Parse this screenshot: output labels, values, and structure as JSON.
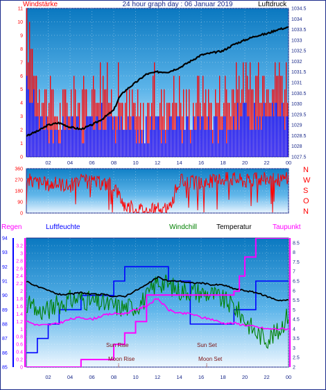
{
  "header": {
    "left_label": "Windstärke",
    "title": "24 hour graph day : 06 Januar 2019",
    "right_label": "Luftdruck"
  },
  "bottom_header": {
    "regen": "Regen",
    "luftfeuchte": "Luftfeuchte",
    "windchill": "Windchill",
    "temperatur": "Temperatur",
    "taupunkt": "Taupunkt"
  },
  "direction_letters": [
    "N",
    "W",
    "S",
    "O",
    "N"
  ],
  "annotations": {
    "sun_rise": "Sun Rise",
    "sun_set": "Sun Set",
    "moon_rise": "Moon Rise",
    "moon_set": "Moon Set"
  },
  "colors": {
    "wind_gust": "#ff0000",
    "wind_avg": "#0000ff",
    "pressure": "#000000",
    "direction": "#ff0000",
    "humidity": "#0000ff",
    "windchill": "#008000",
    "temperature": "#000000",
    "dewpoint": "#ff00ff",
    "rain": "#ff00ff",
    "frame_dark": "#1a2a8a",
    "plot_bg_top": "#0a7ec4",
    "plot_bg_bottom": "#ffffff"
  },
  "chart_data": [
    {
      "type": "area",
      "title": "24 hour graph day : 06 Januar 2019",
      "x_tick_labels": [
        "02",
        "04",
        "06",
        "08",
        "10",
        "12",
        "14",
        "16",
        "18",
        "20",
        "22",
        "00"
      ],
      "left_axis": {
        "label": "Windstärke",
        "ticks": [
          "0",
          "1",
          "2",
          "3",
          "4",
          "5",
          "6",
          "7",
          "8",
          "9",
          "10",
          "11"
        ],
        "ylim": [
          0,
          11
        ]
      },
      "right_axis": {
        "label": "Luftdruck",
        "ticks": [
          "1027.5",
          "1028",
          "1028.5",
          "1029",
          "1029.5",
          "1030",
          "1030.5",
          "1031",
          "1031.5",
          "1032",
          "1032.5",
          "1033",
          "1033.5",
          "1034",
          "1034.5"
        ],
        "ylim": [
          1027.5,
          1034.5
        ]
      },
      "series": [
        {
          "name": "Windstärke",
          "axis": "left",
          "x": [
            0,
            0.5,
            1,
            1.5,
            2,
            2.5,
            3,
            3.5,
            4,
            4.5,
            5,
            5.5,
            6,
            6.5,
            7,
            7.5,
            8,
            8.5,
            9,
            9.5,
            10,
            10.5,
            11,
            11.5,
            12,
            12.5,
            13,
            13.5,
            14,
            14.5,
            15,
            15.5,
            16,
            16.5,
            17,
            17.5,
            18,
            18.5,
            19,
            19.5,
            20,
            20.5,
            21,
            21.5,
            22,
            22.5,
            23,
            23.5,
            24
          ],
          "values": [
            9,
            7,
            5,
            4,
            4,
            3,
            3,
            3,
            4,
            4,
            3,
            4,
            4,
            5,
            5,
            4,
            4,
            4,
            3,
            3,
            3,
            2,
            3,
            4,
            4,
            3,
            4,
            4,
            4,
            3,
            3,
            4,
            4,
            4,
            3,
            4,
            4,
            4,
            4,
            5,
            5,
            4,
            5,
            5,
            6,
            5,
            6,
            5,
            5
          ]
        },
        {
          "name": "Luftdruck",
          "axis": "right",
          "x": [
            0,
            1,
            2,
            3,
            4,
            5,
            6,
            7,
            8,
            8.5,
            9,
            10,
            11,
            12,
            13,
            14,
            15,
            16,
            17,
            18,
            19,
            20,
            21,
            22,
            23,
            24
          ],
          "values": [
            1028.5,
            1028.7,
            1029.0,
            1029.1,
            1028.9,
            1028.8,
            1029.0,
            1029.3,
            1029.7,
            1030.3,
            1030.6,
            1031.0,
            1031.4,
            1031.5,
            1031.5,
            1031.7,
            1032.0,
            1032.3,
            1032.4,
            1032.5,
            1032.8,
            1033.0,
            1033.2,
            1033.3,
            1033.5,
            1033.6
          ]
        }
      ]
    },
    {
      "type": "line",
      "left_axis": {
        "ticks": [
          "0",
          "90",
          "180",
          "270",
          "360"
        ],
        "ylim": [
          0,
          360
        ]
      },
      "right_axis_labels": [
        "N",
        "W",
        "S",
        "O",
        "N"
      ],
      "series": [
        {
          "name": "Windrichtung",
          "x": [
            0,
            1,
            2,
            3,
            4,
            5,
            6,
            7,
            8,
            9,
            10,
            11,
            12,
            13,
            14,
            15,
            16,
            17,
            18,
            19,
            20,
            21,
            22,
            23,
            24
          ],
          "values": [
            270,
            250,
            230,
            240,
            220,
            260,
            250,
            240,
            230,
            60,
            40,
            20,
            30,
            20,
            260,
            250,
            240,
            260,
            280,
            280,
            260,
            270,
            280,
            270,
            280
          ]
        }
      ]
    },
    {
      "type": "line",
      "x_tick_labels": [
        "02",
        "04",
        "06",
        "08",
        "10",
        "12",
        "14",
        "16",
        "18",
        "20",
        "22",
        "00"
      ],
      "left_axis": {
        "label": "Luftfeuchte",
        "ticks": [
          "85",
          "86",
          "87",
          "88",
          "89",
          "90",
          "91",
          "92",
          "93",
          "94"
        ],
        "ylim": [
          85,
          94
        ]
      },
      "rain_axis": {
        "label": "Regen",
        "ticks": [
          "0",
          "0.2",
          "0.4",
          "0.6",
          "0.8",
          "1",
          "1.2",
          "1.4",
          "1.6",
          "1.8",
          "2",
          "2.2",
          "2.4",
          "2.6",
          "2.8",
          "3",
          "3.2"
        ],
        "ylim": [
          0,
          3.4
        ]
      },
      "right_axis": {
        "label": "Temperatur",
        "ticks": [
          "2",
          "2.5",
          "3",
          "3.5",
          "4",
          "4.5",
          "5",
          "5.5",
          "6",
          "6.5",
          "7",
          "7.5",
          "8",
          "8.5"
        ],
        "ylim": [
          2,
          8.75
        ]
      },
      "series": [
        {
          "name": "Luftfeuchte",
          "axis": "left",
          "x": [
            0,
            1,
            2,
            3,
            4,
            5,
            6,
            7,
            8,
            9,
            10,
            11,
            12,
            13,
            14,
            15,
            16,
            17,
            18,
            19,
            20,
            21,
            22,
            23,
            24
          ],
          "values": [
            86,
            87,
            88,
            89,
            89,
            90,
            90,
            90,
            91,
            92,
            92,
            92,
            92,
            91,
            91,
            88,
            88,
            88,
            88,
            89,
            89,
            91,
            91,
            91,
            91
          ]
        },
        {
          "name": "Temperatur",
          "axis": "right",
          "x": [
            0,
            1,
            2,
            3,
            4,
            5,
            6,
            7,
            8,
            9,
            10,
            11,
            12,
            13,
            14,
            15,
            16,
            17,
            18,
            19,
            20,
            21,
            22,
            23,
            24
          ],
          "values": [
            6.5,
            6.2,
            6.0,
            5.8,
            5.8,
            5.9,
            5.8,
            5.8,
            5.7,
            5.7,
            6.0,
            6.3,
            6.7,
            6.5,
            6.5,
            6.4,
            6.4,
            6.3,
            6.3,
            6.1,
            6.0,
            5.9,
            5.7,
            5.5,
            5.5
          ]
        },
        {
          "name": "Windchill",
          "axis": "right",
          "x": [
            0,
            1,
            2,
            3,
            4,
            5,
            6,
            7,
            8,
            9,
            10,
            11,
            12,
            13,
            14,
            15,
            16,
            17,
            18,
            19,
            20,
            21,
            22,
            23,
            24
          ],
          "values": [
            5.3,
            4.9,
            5.0,
            5.3,
            5.5,
            5.6,
            5.4,
            5.3,
            5.2,
            5.1,
            5.2,
            5.6,
            6.5,
            6.3,
            6.0,
            6.0,
            5.9,
            5.8,
            5.5,
            5.2,
            4.5,
            3.8,
            3.5,
            3.8,
            4.8
          ]
        },
        {
          "name": "Taupunkt",
          "axis": "right",
          "x": [
            0,
            1,
            2,
            3,
            4,
            5,
            6,
            7,
            8,
            9,
            10,
            11,
            12,
            13,
            14,
            15,
            16,
            17,
            18,
            19,
            20,
            21,
            22,
            23,
            24
          ],
          "values": [
            4.4,
            4.2,
            4.2,
            4.3,
            4.5,
            4.6,
            4.5,
            4.7,
            4.8,
            4.8,
            5.0,
            5.2,
            5.6,
            5.0,
            4.8,
            4.8,
            4.6,
            4.5,
            4.3,
            4.3,
            4.2,
            4.1,
            4.0,
            4.0,
            4.0
          ]
        },
        {
          "name": "Regen",
          "axis": "rain",
          "x": [
            0,
            4.5,
            5,
            7.5,
            8,
            9,
            10,
            11,
            13,
            14,
            15,
            16,
            17,
            18,
            19,
            19.5,
            20,
            21,
            22,
            23,
            24
          ],
          "values": [
            0,
            0,
            0.2,
            0.2,
            0.6,
            0.9,
            1.2,
            1.9,
            1.9,
            1.9,
            1.9,
            1.9,
            1.9,
            1.9,
            2.0,
            2.4,
            2.9,
            3.4,
            3.4,
            3.4,
            3.4
          ]
        }
      ]
    }
  ]
}
